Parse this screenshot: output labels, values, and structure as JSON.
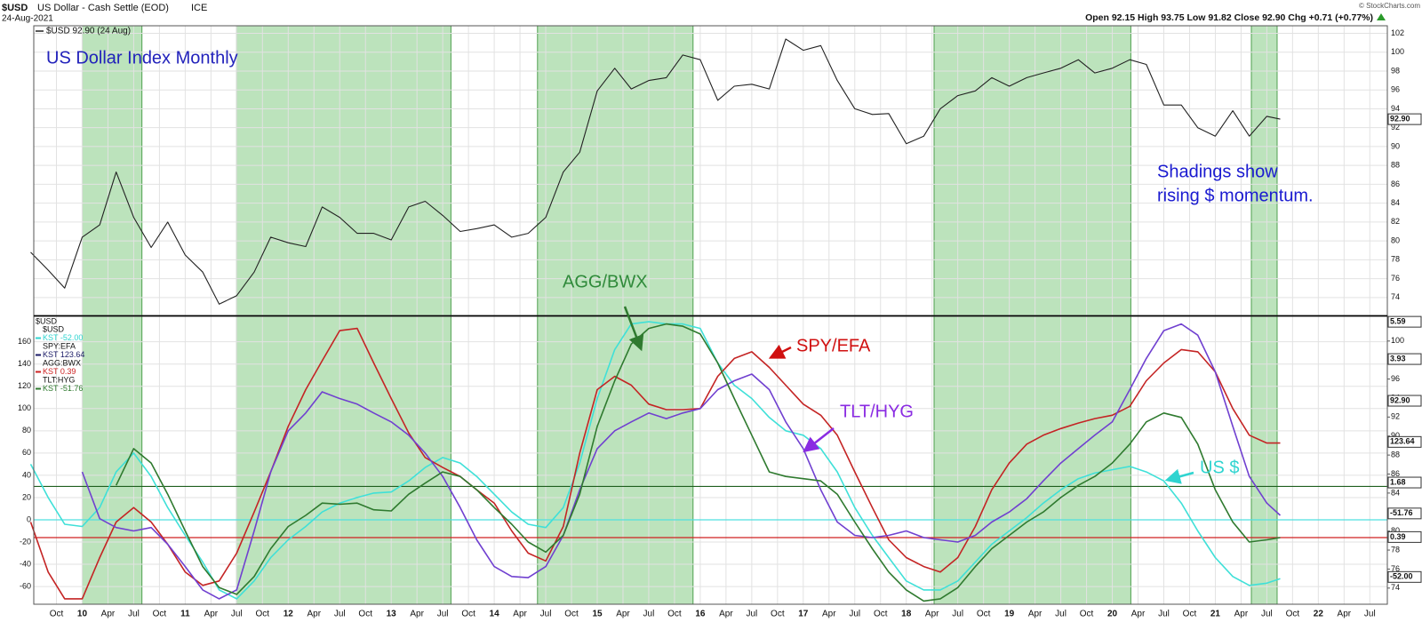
{
  "chart_data": [
    {
      "type": "line",
      "symbol": "$USD",
      "title": "US Dollar - Cash Settle (EOD)",
      "exchange": "ICE",
      "date": "24-Aug-2021",
      "quote": "Open 92.15 High 93.75 Low 91.82 Close 92.90 Chg +0.71 (+0.77%)",
      "credit": "© StockCharts.com",
      "legend": "$USD 92.90 (24 Aug)",
      "annotations": [
        "US Dollar Index Monthly",
        "Shadings show",
        "rising $ momentum."
      ],
      "x": [
        2009.5,
        2009.67,
        2009.83,
        2010,
        2010.17,
        2010.33,
        2010.5,
        2010.67,
        2010.83,
        2011,
        2011.17,
        2011.33,
        2011.5,
        2011.67,
        2011.83,
        2012,
        2012.17,
        2012.33,
        2012.5,
        2012.67,
        2012.83,
        2013,
        2013.17,
        2013.33,
        2013.5,
        2013.67,
        2013.83,
        2014,
        2014.17,
        2014.33,
        2014.5,
        2014.67,
        2014.83,
        2015,
        2015.17,
        2015.33,
        2015.5,
        2015.67,
        2015.83,
        2016,
        2016.17,
        2016.33,
        2016.5,
        2016.67,
        2016.83,
        2017,
        2017.17,
        2017.33,
        2017.5,
        2017.67,
        2017.83,
        2018,
        2018.17,
        2018.33,
        2018.5,
        2018.67,
        2018.83,
        2019,
        2019.17,
        2019.33,
        2019.5,
        2019.67,
        2019.83,
        2020,
        2020.17,
        2020.33,
        2020.5,
        2020.67,
        2020.83,
        2021,
        2021.17,
        2021.33,
        2021.5,
        2021.63
      ],
      "series": [
        {
          "name": "$USD",
          "color": "#222222",
          "values": [
            78.8,
            76.9,
            75.0,
            80.4,
            81.7,
            87.3,
            82.5,
            79.3,
            82.0,
            78.5,
            76.7,
            73.3,
            74.2,
            76.7,
            80.4,
            79.8,
            79.4,
            83.6,
            82.5,
            80.8,
            80.8,
            80.1,
            83.6,
            84.2,
            82.7,
            81.0,
            81.3,
            81.7,
            80.4,
            80.8,
            82.5,
            87.3,
            89.4,
            95.9,
            98.3,
            96.1,
            97.0,
            97.3,
            99.7,
            99.2,
            94.9,
            96.4,
            96.6,
            96.1,
            101.4,
            100.2,
            100.7,
            97.0,
            94.0,
            93.4,
            93.5,
            90.3,
            91.1,
            94.0,
            95.4,
            95.9,
            97.3,
            96.4,
            97.3,
            97.8,
            98.3,
            99.2,
            97.8,
            98.3,
            99.2,
            98.7,
            94.4,
            94.4,
            92.0,
            91.1,
            93.8,
            91.1,
            93.2,
            92.9
          ]
        }
      ],
      "ylim": [
        72.1,
        102.8
      ],
      "yticks": [
        74,
        76,
        78,
        80,
        82,
        84,
        86,
        88,
        90,
        92,
        94,
        96,
        98,
        100,
        102
      ],
      "tag": {
        "value": 92.9,
        "label": "92.90"
      },
      "shadings": [
        [
          2010,
          2010.58
        ],
        [
          2011.5,
          2013.58
        ],
        [
          2014.42,
          2015.93
        ],
        [
          2018.27,
          2020.18
        ],
        [
          2021.35,
          2021.6
        ]
      ],
      "shading_color": "#8fd18f",
      "grid": true
    },
    {
      "type": "line",
      "title": "$USD",
      "legend": [
        {
          "symbol": "$USD",
          "label": "KST -52.00",
          "color": "#2fd4d0"
        },
        {
          "symbol": "SPY:EFA",
          "label": "KST 123.64",
          "color": "#1a1a66"
        },
        {
          "symbol": "AGG:BWX",
          "label": "KST 0.39",
          "color": "#cc2020"
        },
        {
          "symbol": "TLT:HYG",
          "label": "KST -51.76",
          "color": "#2f7a2f"
        }
      ],
      "x": [
        2009.5,
        2009.67,
        2009.83,
        2010,
        2010.17,
        2010.33,
        2010.5,
        2010.67,
        2010.83,
        2011,
        2011.17,
        2011.33,
        2011.5,
        2011.67,
        2011.83,
        2012,
        2012.17,
        2012.33,
        2012.5,
        2012.67,
        2012.83,
        2013,
        2013.17,
        2013.33,
        2013.5,
        2013.67,
        2013.83,
        2014,
        2014.17,
        2014.33,
        2014.5,
        2014.67,
        2014.83,
        2015,
        2015.17,
        2015.33,
        2015.5,
        2015.67,
        2015.83,
        2016,
        2016.17,
        2016.33,
        2016.5,
        2016.67,
        2016.83,
        2017,
        2017.17,
        2017.33,
        2017.5,
        2017.67,
        2017.83,
        2018,
        2018.17,
        2018.33,
        2018.5,
        2018.67,
        2018.83,
        2019,
        2019.17,
        2019.33,
        2019.5,
        2019.67,
        2019.83,
        2020,
        2020.17,
        2020.33,
        2020.5,
        2020.67,
        2020.83,
        2021,
        2021.17,
        2021.33,
        2021.5,
        2021.63
      ],
      "series": [
        {
          "name": "US $",
          "color": "#3fe0d8",
          "values": [
            50,
            20,
            -4,
            -6,
            11,
            43,
            60,
            39,
            11,
            -14,
            -38,
            -63,
            -71,
            -55,
            -34,
            -18,
            -6,
            7,
            15,
            20,
            24,
            25,
            35,
            47,
            56,
            51,
            39,
            23,
            7,
            -4,
            -7,
            11,
            51,
            109,
            153,
            176,
            178,
            176,
            176,
            172,
            141,
            121,
            109,
            92,
            80,
            76,
            64,
            43,
            11,
            -14,
            -34,
            -55,
            -63,
            -63,
            -55,
            -38,
            -22,
            -10,
            2,
            15,
            27,
            37,
            42,
            45,
            48,
            43,
            35,
            15,
            -10,
            -34,
            -51,
            -59,
            -57,
            -53
          ]
        },
        {
          "name": "SPY/EFA",
          "color": "#c42424",
          "values": [
            -2,
            -47,
            -71,
            -71,
            -34,
            -2,
            11,
            -2,
            -22,
            -47,
            -59,
            -55,
            -30,
            7,
            43,
            84,
            117,
            143,
            170,
            172,
            141,
            109,
            78,
            56,
            47,
            39,
            27,
            15,
            -10,
            -30,
            -37,
            -6,
            60,
            117,
            129,
            121,
            104,
            99,
            99,
            100,
            129,
            145,
            151,
            137,
            121,
            104,
            94,
            76,
            43,
            11,
            -18,
            -34,
            -42,
            -47,
            -34,
            -6,
            27,
            51,
            68,
            76,
            82,
            87,
            91,
            94,
            102,
            125,
            141,
            153,
            151,
            133,
            100,
            76,
            69,
            69
          ]
        },
        {
          "name": "TLT/HYG",
          "color": "#7040d0",
          "values": [
            null,
            null,
            null,
            43,
            1,
            -7,
            -10,
            -7,
            -22,
            -42,
            -63,
            -71,
            -63,
            -10,
            43,
            80,
            96,
            115,
            109,
            104,
            96,
            88,
            76,
            60,
            39,
            11,
            -18,
            -42,
            -51,
            -52,
            -42,
            -14,
            27,
            64,
            80,
            88,
            96,
            91,
            96,
            100,
            117,
            125,
            131,
            117,
            88,
            64,
            27,
            -2,
            -14,
            -16,
            -14,
            -10,
            -16,
            -18,
            -20,
            -14,
            -2,
            7,
            19,
            35,
            51,
            64,
            76,
            88,
            117,
            145,
            170,
            176,
            166,
            133,
            84,
            39,
            15,
            4
          ]
        },
        {
          "name": "AGG/BWX",
          "color": "#2f7a2f",
          "values": [
            null,
            null,
            null,
            null,
            null,
            31,
            64,
            51,
            23,
            -10,
            -42,
            -61,
            -67,
            -51,
            -26,
            -6,
            4,
            15,
            14,
            15,
            9,
            8,
            23,
            33,
            43,
            39,
            27,
            11,
            -4,
            -20,
            -29,
            -14,
            23,
            84,
            125,
            158,
            172,
            176,
            174,
            167,
            141,
            109,
            76,
            43,
            39,
            37,
            35,
            23,
            -2,
            -26,
            -47,
            -63,
            -73,
            -71,
            -61,
            -42,
            -26,
            -14,
            -2,
            7,
            20,
            31,
            39,
            51,
            68,
            88,
            96,
            92,
            68,
            27,
            -2,
            -20,
            -18,
            -16
          ]
        }
      ],
      "ylim": [
        -75.9,
        182.9
      ],
      "yticks": [
        -60,
        -40,
        -20,
        0,
        20,
        40,
        60,
        80,
        100,
        120,
        140,
        160
      ],
      "y2lim": [
        72.3,
        102.6
      ],
      "y2ticks": [
        74,
        76,
        78,
        80,
        82,
        84,
        86,
        88,
        90,
        92,
        94,
        96,
        98,
        100
      ],
      "hlines": [
        {
          "value": 30,
          "color": "#1f5f1f"
        },
        {
          "value": 0,
          "color": "#4fe0e0"
        },
        {
          "value": -16,
          "color": "#d02020"
        }
      ],
      "tags": [
        {
          "value": 178,
          "label": "5.59"
        },
        {
          "value": 144.5,
          "label": "3.93"
        },
        {
          "value": 107,
          "label": "92.90"
        },
        {
          "value": 70,
          "label": "123.64"
        },
        {
          "value": 33.5,
          "label": "1.68"
        },
        {
          "value": 5.7,
          "label": "-51.76"
        },
        {
          "value": -15.5,
          "label": "0.39"
        },
        {
          "value": -51.4,
          "label": "-52.00"
        }
      ],
      "xlim": [
        2009.53,
        2022.67
      ],
      "xticks": [
        {
          "value": 2009.75,
          "label": "Oct"
        },
        {
          "value": 2010,
          "label": "10"
        },
        {
          "value": 2010.25,
          "label": "Apr"
        },
        {
          "value": 2010.5,
          "label": "Jul"
        },
        {
          "value": 2010.75,
          "label": "Oct"
        },
        {
          "value": 2011,
          "label": "11"
        },
        {
          "value": 2011.25,
          "label": "Apr"
        },
        {
          "value": 2011.5,
          "label": "Jul"
        },
        {
          "value": 2011.75,
          "label": "Oct"
        },
        {
          "value": 2012,
          "label": "12"
        },
        {
          "value": 2012.25,
          "label": "Apr"
        },
        {
          "value": 2012.5,
          "label": "Jul"
        },
        {
          "value": 2012.75,
          "label": "Oct"
        },
        {
          "value": 2013,
          "label": "13"
        },
        {
          "value": 2013.25,
          "label": "Apr"
        },
        {
          "value": 2013.5,
          "label": "Jul"
        },
        {
          "value": 2013.75,
          "label": "Oct"
        },
        {
          "value": 2014,
          "label": "14"
        },
        {
          "value": 2014.25,
          "label": "Apr"
        },
        {
          "value": 2014.5,
          "label": "Jul"
        },
        {
          "value": 2014.75,
          "label": "Oct"
        },
        {
          "value": 2015,
          "label": "15"
        },
        {
          "value": 2015.25,
          "label": "Apr"
        },
        {
          "value": 2015.5,
          "label": "Jul"
        },
        {
          "value": 2015.75,
          "label": "Oct"
        },
        {
          "value": 2016,
          "label": "16"
        },
        {
          "value": 2016.25,
          "label": "Apr"
        },
        {
          "value": 2016.5,
          "label": "Jul"
        },
        {
          "value": 2016.75,
          "label": "Oct"
        },
        {
          "value": 2017,
          "label": "17"
        },
        {
          "value": 2017.25,
          "label": "Apr"
        },
        {
          "value": 2017.5,
          "label": "Jul"
        },
        {
          "value": 2017.75,
          "label": "Oct"
        },
        {
          "value": 2018,
          "label": "18"
        },
        {
          "value": 2018.25,
          "label": "Apr"
        },
        {
          "value": 2018.5,
          "label": "Jul"
        },
        {
          "value": 2018.75,
          "label": "Oct"
        },
        {
          "value": 2019,
          "label": "19"
        },
        {
          "value": 2019.25,
          "label": "Apr"
        },
        {
          "value": 2019.5,
          "label": "Jul"
        },
        {
          "value": 2019.75,
          "label": "Oct"
        },
        {
          "value": 2020,
          "label": "20"
        },
        {
          "value": 2020.25,
          "label": "Apr"
        },
        {
          "value": 2020.5,
          "label": "Jul"
        },
        {
          "value": 2020.75,
          "label": "Oct"
        },
        {
          "value": 2021,
          "label": "21"
        },
        {
          "value": 2021.25,
          "label": "Apr"
        },
        {
          "value": 2021.5,
          "label": "Jul"
        },
        {
          "value": 2021.75,
          "label": "Oct"
        },
        {
          "value": 2022,
          "label": "22"
        },
        {
          "value": 2022.25,
          "label": "Apr"
        },
        {
          "value": 2022.5,
          "label": "Jul"
        }
      ],
      "grid": true
    }
  ]
}
